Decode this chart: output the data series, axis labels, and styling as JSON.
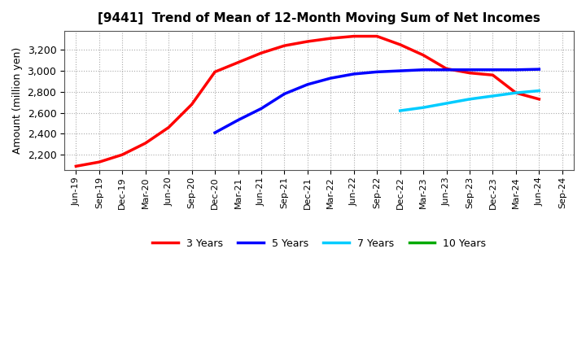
{
  "title": "[9441]  Trend of Mean of 12-Month Moving Sum of Net Incomes",
  "ylabel": "Amount (million yen)",
  "background_color": "#ffffff",
  "grid_color": "#aaaaaa",
  "ylim": [
    2050,
    3380
  ],
  "yticks": [
    2200,
    2400,
    2600,
    2800,
    3000,
    3200
  ],
  "xtick_labels": [
    "Jun-19",
    "Sep-19",
    "Dec-19",
    "Mar-20",
    "Jun-20",
    "Sep-20",
    "Dec-20",
    "Mar-21",
    "Jun-21",
    "Sep-21",
    "Dec-21",
    "Mar-22",
    "Jun-22",
    "Sep-22",
    "Dec-22",
    "Mar-23",
    "Jun-23",
    "Sep-23",
    "Dec-23",
    "Mar-24",
    "Jun-24",
    "Sep-24"
  ],
  "series": [
    {
      "name": "3 Years",
      "color": "#ff0000",
      "x_idx": [
        0,
        1,
        2,
        3,
        4,
        5,
        6,
        7,
        8,
        9,
        10,
        11,
        12,
        13,
        14,
        15,
        16,
        17,
        18,
        19,
        20
      ],
      "y": [
        2090,
        2130,
        2200,
        2310,
        2460,
        2680,
        2990,
        3080,
        3170,
        3240,
        3280,
        3310,
        3330,
        3330,
        3250,
        3150,
        3020,
        2980,
        2960,
        2790,
        2730
      ]
    },
    {
      "name": "5 Years",
      "color": "#0000ff",
      "x_idx": [
        6,
        7,
        8,
        9,
        10,
        11,
        12,
        13,
        14,
        15,
        16,
        17,
        18,
        19,
        20
      ],
      "y": [
        2410,
        2530,
        2640,
        2780,
        2870,
        2930,
        2970,
        2990,
        3000,
        3010,
        3010,
        3010,
        3010,
        3010,
        3015
      ]
    },
    {
      "name": "7 Years",
      "color": "#00ccff",
      "x_idx": [
        14,
        15,
        16,
        17,
        18,
        19,
        20
      ],
      "y": [
        2620,
        2650,
        2690,
        2730,
        2760,
        2790,
        2810
      ]
    },
    {
      "name": "10 Years",
      "color": "#00aa00",
      "x_idx": [],
      "y": []
    }
  ],
  "linewidth": 2.5
}
